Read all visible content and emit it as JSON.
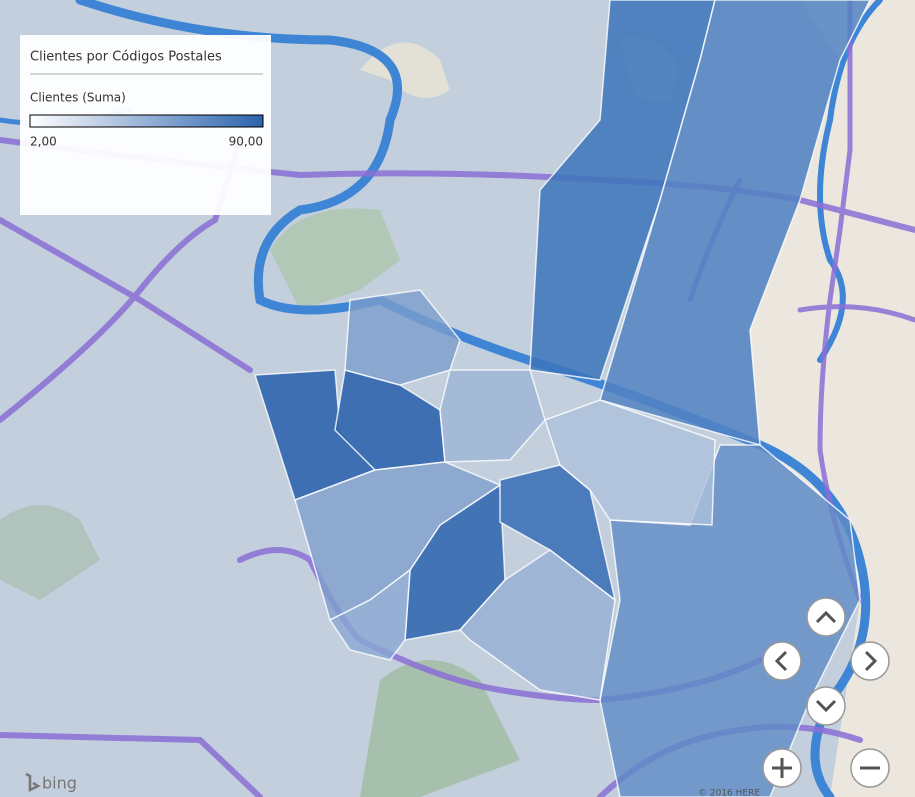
{
  "legend": {
    "title": "Clientes por Códigos Postales",
    "measure": "Clientes (Suma)",
    "min_label": "2,00",
    "max_label": "90,00"
  },
  "map": {
    "logo": "bing",
    "copyright": "© 2016 HERE"
  }
}
